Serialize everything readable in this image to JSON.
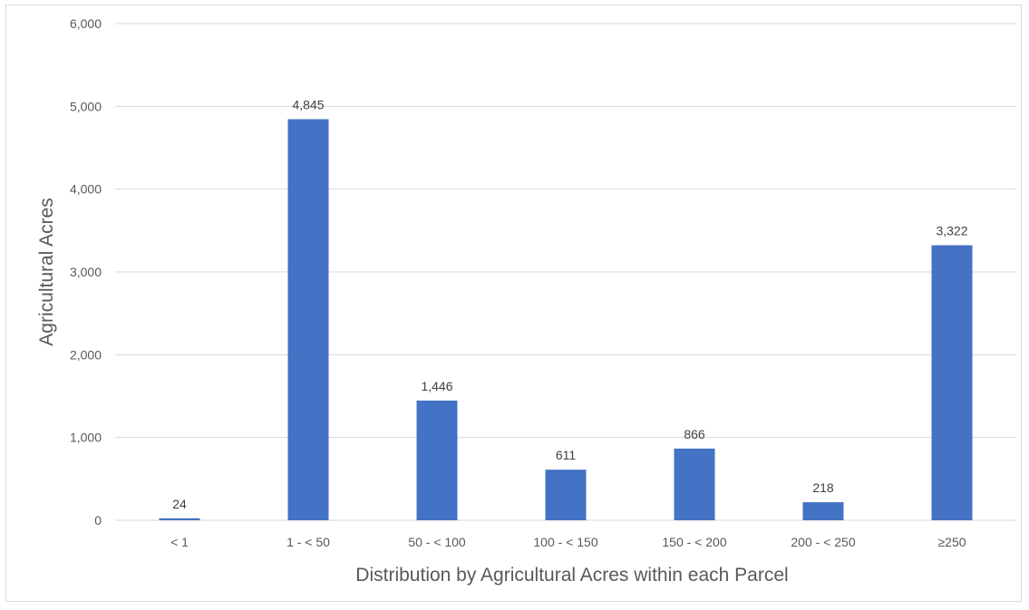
{
  "chart_data": {
    "type": "bar",
    "title": "",
    "xlabel": "Distribution by Agricultural Acres within each Parcel",
    "ylabel": "Agricultural Acres",
    "categories": [
      "< 1",
      "1 - < 50",
      "50 - < 100",
      "100 - < 150",
      "150 - < 200",
      "200 - < 250",
      "≥250"
    ],
    "values": [
      24,
      4845,
      1446,
      611,
      866,
      218,
      3322
    ],
    "data_labels": [
      "24",
      "4,845",
      "1,446",
      "611",
      "866",
      "218",
      "3,322"
    ],
    "ylim": [
      0,
      6000
    ],
    "yticks": [
      0,
      1000,
      2000,
      3000,
      4000,
      5000,
      6000
    ],
    "ytick_labels": [
      "0",
      "1,000",
      "2,000",
      "3,000",
      "4,000",
      "5,000",
      "6,000"
    ],
    "grid": true,
    "legend": "none",
    "bar_color": "#4472c4",
    "grid_color": "#d9d9d9"
  }
}
